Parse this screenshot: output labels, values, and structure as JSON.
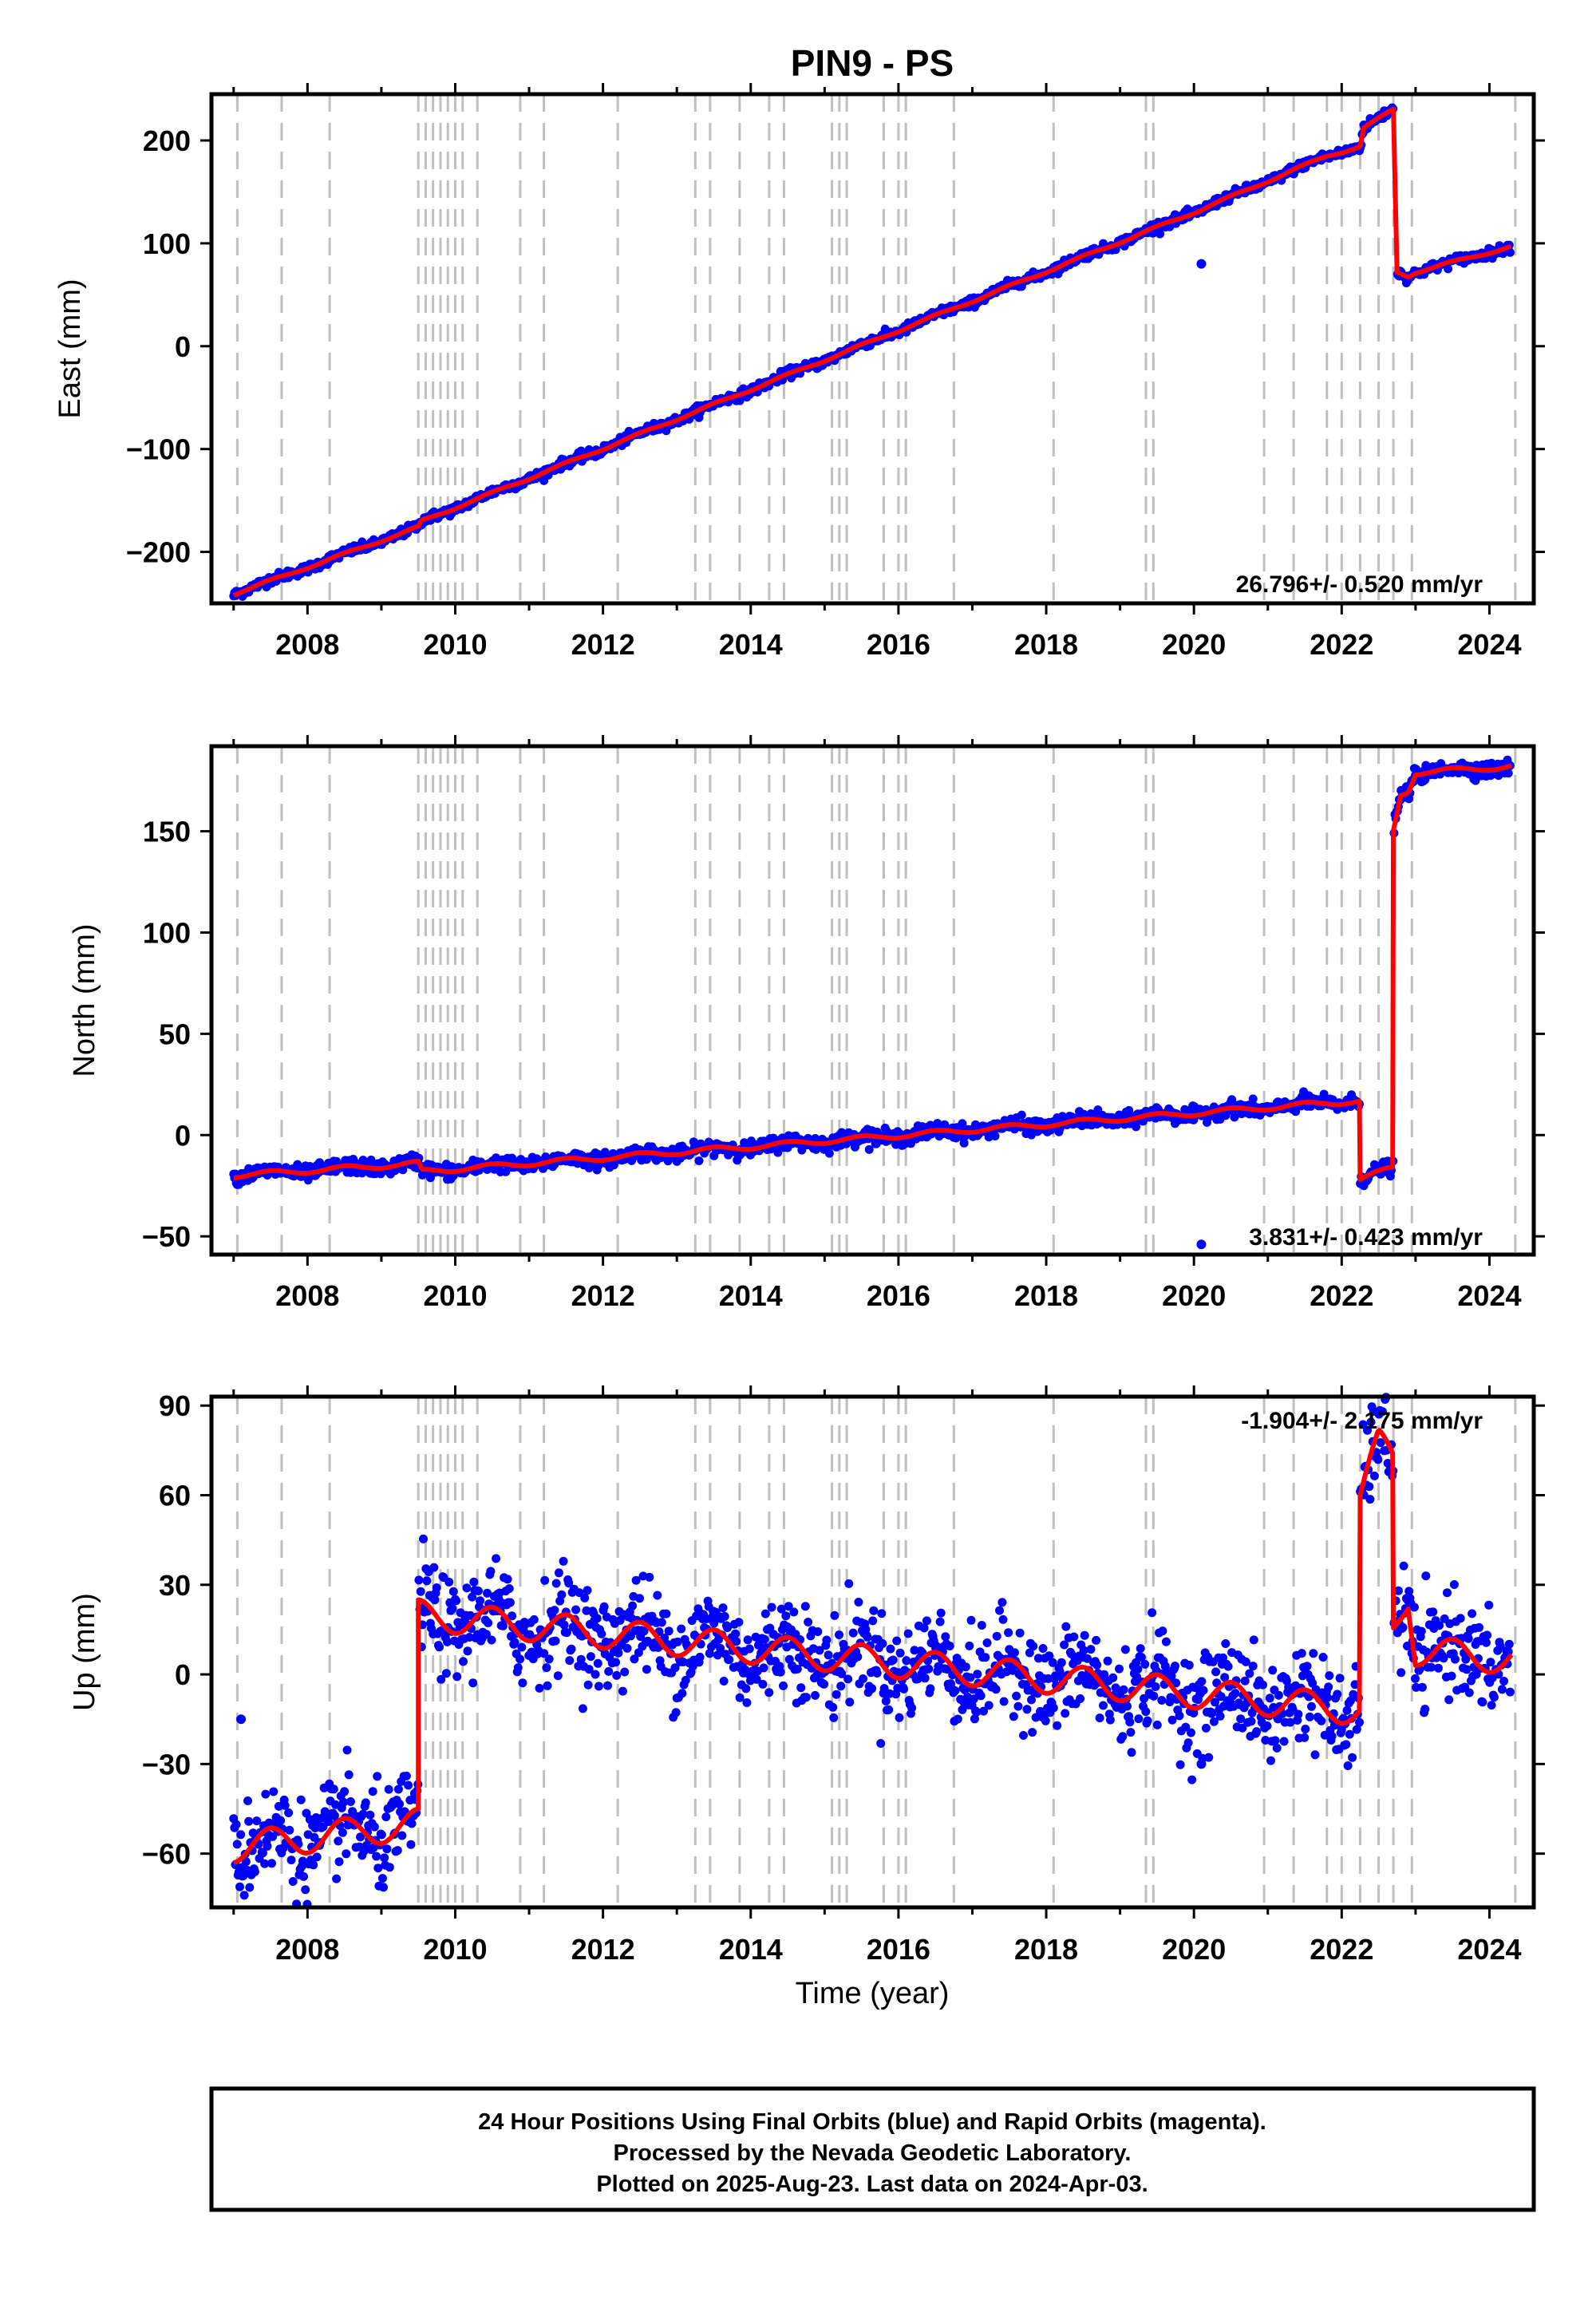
{
  "figure": {
    "title": "PIN9 - PS",
    "xlabel": "Time (year)",
    "footer_lines": [
      "24 Hour Positions Using Final Orbits (blue) and Rapid Orbits (magenta).",
      "Processed by the Nevada Geodetic Laboratory.",
      "Plotted on 2025-Aug-23. Last data on 2024-Apr-03."
    ],
    "colors": {
      "final_orbits": "#0000ff",
      "rapid_orbits": "#ff00ff",
      "model_fit": "#ff0000",
      "event_lines": "#bfbfbf",
      "frame": "#000000"
    }
  },
  "chart_data": [
    {
      "type": "scatter",
      "component": "East",
      "ylabel": "East (mm)",
      "xlim": [
        2006.7,
        2024.6
      ],
      "ylim": [
        -250,
        245
      ],
      "x_ticks": [
        2008,
        2010,
        2012,
        2014,
        2016,
        2018,
        2020,
        2022,
        2024
      ],
      "y_ticks": [
        -200,
        -100,
        0,
        100,
        200
      ],
      "y_tick_labels": [
        "−200",
        "−100",
        "0",
        "100",
        "200"
      ],
      "rate_label": "26.796+/- 0.520 mm/yr",
      "model_segments": [
        [
          [
            2007.0,
            -241
          ],
          [
            2009.5,
            -176
          ],
          [
            2009.55,
            -170
          ],
          [
            2020.0,
            130
          ],
          [
            2021.8,
            185
          ],
          [
            2022.25,
            194
          ],
          [
            2022.3,
            212
          ],
          [
            2022.7,
            230
          ]
        ],
        [
          [
            2022.75,
            72
          ],
          [
            2022.9,
            68
          ],
          [
            2023.0,
            72
          ],
          [
            2024.3,
            97
          ]
        ]
      ],
      "observed_summary": "daily positions scattered about the model fit",
      "outliers": [
        [
          2020.1,
          80
        ]
      ]
    },
    {
      "type": "scatter",
      "component": "North",
      "ylabel": "North (mm)",
      "xlim": [
        2006.7,
        2024.6
      ],
      "ylim": [
        -59,
        192
      ],
      "x_ticks": [
        2008,
        2010,
        2012,
        2014,
        2016,
        2018,
        2020,
        2022,
        2024
      ],
      "y_ticks": [
        -50,
        0,
        50,
        100,
        150
      ],
      "y_tick_labels": [
        "−50",
        "0",
        "50",
        "100",
        "150"
      ],
      "rate_label": "3.831+/- 0.423 mm/yr",
      "model_segments": [
        [
          [
            2007.0,
            -20
          ],
          [
            2009.5,
            -14
          ],
          [
            2009.55,
            -18
          ],
          [
            2022.25,
            17
          ]
        ],
        [
          [
            2022.25,
            -22
          ],
          [
            2022.7,
            -16
          ]
        ],
        [
          [
            2022.7,
            150
          ],
          [
            2022.8,
            168
          ],
          [
            2022.9,
            170
          ],
          [
            2023.0,
            179
          ],
          [
            2024.3,
            182
          ]
        ]
      ],
      "outliers": [
        [
          2020.1,
          -54
        ]
      ]
    },
    {
      "type": "scatter",
      "component": "Up",
      "ylabel": "Up (mm)",
      "xlim": [
        2006.7,
        2024.6
      ],
      "ylim": [
        -78,
        93
      ],
      "x_ticks": [
        2008,
        2010,
        2012,
        2014,
        2016,
        2018,
        2020,
        2022,
        2024
      ],
      "y_ticks": [
        -60,
        -30,
        0,
        30,
        60,
        90
      ],
      "y_tick_labels": [
        "−60",
        "−30",
        "0",
        "30",
        "60",
        "90"
      ],
      "rate_label": "-1.904+/- 2.175 mm/yr",
      "model_segments": [
        [
          [
            2007.0,
            -58
          ],
          [
            2009.5,
            -50
          ]
        ],
        [
          [
            2009.5,
            20
          ],
          [
            2022.25,
            -12
          ]
        ],
        [
          [
            2022.25,
            60
          ],
          [
            2022.5,
            77
          ],
          [
            2022.7,
            72
          ]
        ],
        [
          [
            2022.7,
            14
          ],
          [
            2022.9,
            26
          ],
          [
            2023.0,
            8
          ],
          [
            2024.3,
            5
          ]
        ]
      ],
      "outliers": [
        [
          2007.1,
          -15
        ],
        [
          2020.1,
          -30
        ]
      ]
    }
  ],
  "event_years": [
    2007.05,
    2007.65,
    2008.3,
    2009.5,
    2009.6,
    2009.7,
    2009.8,
    2009.9,
    2010.0,
    2010.1,
    2010.3,
    2010.88,
    2011.2,
    2012.2,
    2013.25,
    2013.45,
    2013.85,
    2014.25,
    2014.45,
    2015.1,
    2015.2,
    2015.3,
    2015.8,
    2016.0,
    2016.1,
    2016.75,
    2018.1,
    2019.35,
    2019.45,
    2020.95,
    2021.35,
    2021.8,
    2022.0,
    2022.25,
    2022.5,
    2022.7,
    2022.95,
    2024.35
  ]
}
